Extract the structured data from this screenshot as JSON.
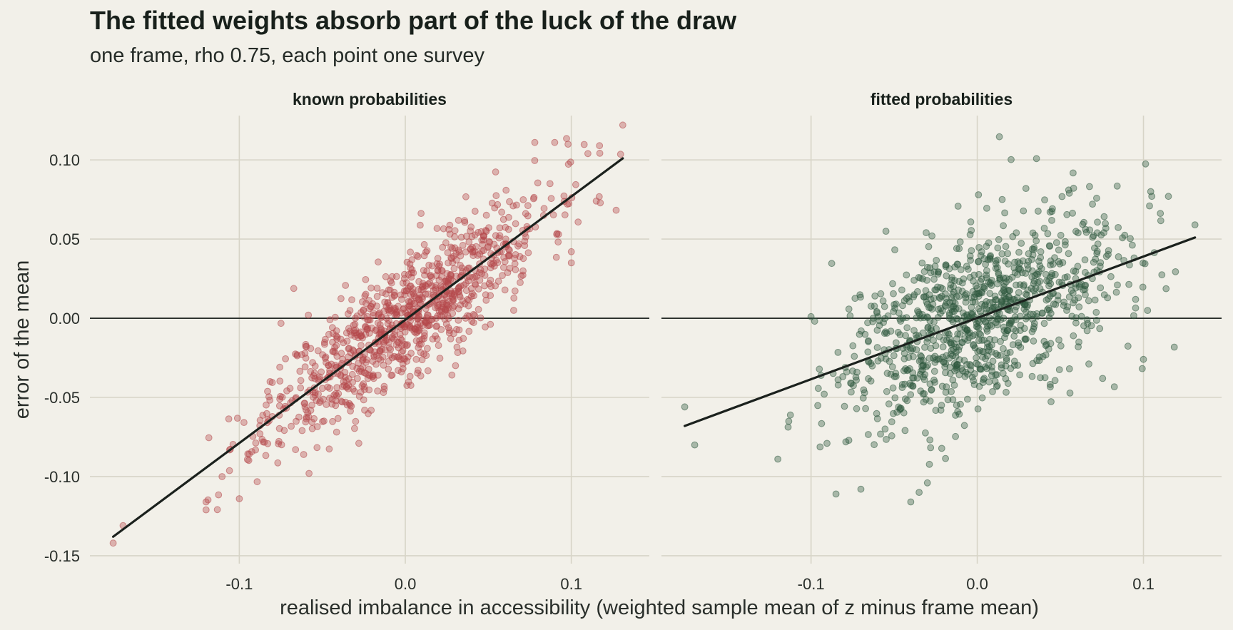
{
  "title": "The fitted weights absorb part of the luck of the draw",
  "subtitle": "one frame, rho 0.75, each point one survey",
  "colors": {
    "background": "#f2f0e9",
    "grid": "#d7d4c7",
    "zero_line": "#2a302c",
    "fit_line": "#1b211d",
    "known": "#b5494c",
    "fitted": "#2f5a3f"
  },
  "chart_data": [
    {
      "type": "scatter",
      "panel_title": "known probabilities",
      "color_key": "known",
      "xlabel": "realised imbalance in accessibility (weighted sample mean of z minus frame mean)",
      "ylabel": "error of the mean",
      "xlim": [
        -0.19,
        0.147
      ],
      "ylim": [
        -0.155,
        0.128
      ],
      "xticks": [
        -0.1,
        0.0,
        0.1
      ],
      "xtick_labels": [
        "-0.1",
        "0.0",
        "0.1"
      ],
      "yticks": [
        -0.15,
        -0.1,
        -0.05,
        0.0,
        0.05,
        0.1
      ],
      "ytick_labels": [
        "-0.15",
        "-0.10",
        "-0.05",
        "0.00",
        "0.05",
        "0.10"
      ],
      "grid": true,
      "zero_line": true,
      "fit_line": {
        "x": [
          -0.176,
          0.131
        ],
        "y": [
          -0.138,
          0.101
        ]
      },
      "highlight_points": {
        "x": [
          -0.176,
          -0.17,
          -0.12,
          -0.12,
          -0.1,
          0.09,
          0.11,
          0.117,
          0.131,
          0.078,
          0.1,
          0.115,
          -0.058,
          0.1
        ],
        "y": [
          -0.142,
          -0.131,
          -0.121,
          -0.116,
          -0.114,
          0.111,
          0.104,
          0.109,
          0.122,
          0.111,
          0.042,
          0.074,
          -0.098,
          0.035
        ]
      },
      "cloud": {
        "n": 1000,
        "x_sd": 0.042,
        "slope": 0.78,
        "resid_sd": 0.019,
        "seed": 11
      }
    },
    {
      "type": "scatter",
      "panel_title": "fitted probabilities",
      "color_key": "fitted",
      "xlim": [
        -0.19,
        0.147
      ],
      "ylim": [
        -0.155,
        0.128
      ],
      "xticks": [
        -0.1,
        0.0,
        0.1
      ],
      "xtick_labels": [
        "-0.1",
        "0.0",
        "0.1"
      ],
      "yticks": [
        -0.15,
        -0.1,
        -0.05,
        0.0,
        0.05,
        0.1
      ],
      "grid": true,
      "zero_line": true,
      "fit_line": {
        "x": [
          -0.176,
          0.131
        ],
        "y": [
          -0.068,
          0.051
        ]
      },
      "highlight_points": {
        "x": [
          -0.176,
          -0.17,
          -0.12,
          -0.07,
          -0.035,
          -0.04,
          -0.03,
          0.015,
          0.055,
          0.115,
          0.105,
          0.131,
          0.1,
          -0.085,
          -0.1
        ],
        "y": [
          -0.056,
          -0.08,
          -0.089,
          -0.108,
          -0.11,
          -0.116,
          -0.104,
          0.075,
          0.081,
          0.077,
          0.077,
          0.059,
          -0.026,
          -0.111,
          0.001
        ]
      },
      "cloud": {
        "n": 1000,
        "x_sd": 0.042,
        "slope": 0.39,
        "resid_sd": 0.027,
        "seed": 29
      }
    }
  ]
}
